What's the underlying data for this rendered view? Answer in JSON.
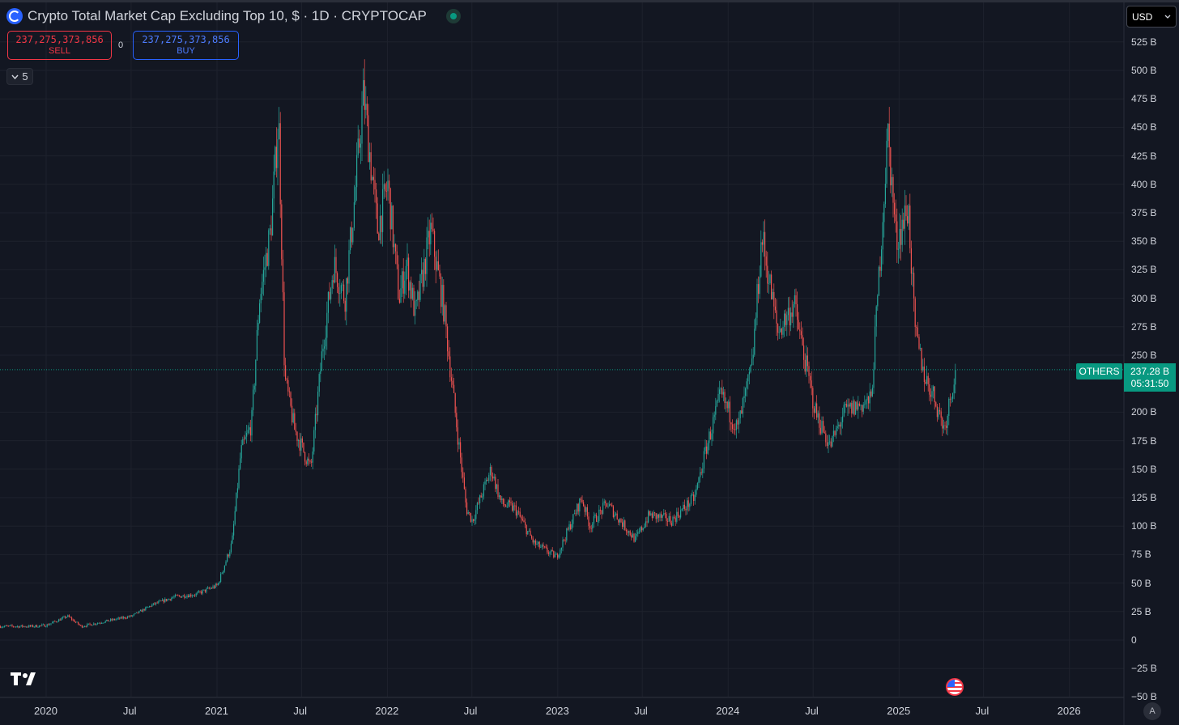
{
  "header": {
    "title": "Crypto Total Market Cap Excluding Top 10, $ · 1D · CRYPTOCAP",
    "currency": "USD",
    "collapse_count": "5"
  },
  "trade": {
    "sell_price": "237,275,373,856",
    "sell_label": "SELL",
    "spread": "0",
    "buy_price": "237,275,373,856",
    "buy_label": "BUY"
  },
  "price_tag": {
    "symbol": "OTHERS",
    "price": "237.28 B",
    "countdown": "05:31:50"
  },
  "colors": {
    "background": "#131722",
    "up": "#26a69a",
    "down": "#ef5350",
    "accent_blue": "#2962ff"
  },
  "chart_data": {
    "type": "candlestick",
    "title": "Crypto Total Market Cap Excluding Top 10, $ · 1D · CRYPTOCAP",
    "y_unit": "B",
    "ylim": [
      -50,
      540
    ],
    "y_ticks": [
      "525 B",
      "500 B",
      "475 B",
      "450 B",
      "425 B",
      "400 B",
      "375 B",
      "350 B",
      "325 B",
      "300 B",
      "275 B",
      "250 B",
      "200 B",
      "175 B",
      "150 B",
      "125 B",
      "100 B",
      "75 B",
      "50 B",
      "25 B",
      "0",
      "−25 B",
      "−50 B"
    ],
    "y_tick_values": [
      525,
      500,
      475,
      450,
      425,
      400,
      375,
      350,
      325,
      300,
      275,
      250,
      200,
      175,
      150,
      125,
      100,
      75,
      50,
      25,
      0,
      -25,
      -50
    ],
    "x_ticks": [
      "2020",
      "Jul",
      "2021",
      "Jul",
      "2022",
      "Jul",
      "2023",
      "Jul",
      "2024",
      "Jul",
      "2025",
      "Jul",
      "2026"
    ],
    "x_tick_dates": [
      "2020-01-01",
      "2020-07-01",
      "2021-01-01",
      "2021-07-01",
      "2022-01-01",
      "2022-07-01",
      "2023-01-01",
      "2023-07-01",
      "2024-01-01",
      "2024-07-01",
      "2025-01-01",
      "2025-07-01",
      "2026-01-01"
    ],
    "last_value": 237.28,
    "series": [
      {
        "values": [
          [
            "2019-12-01",
            12
          ],
          [
            "2020-01-01",
            13
          ],
          [
            "2020-02-15",
            21
          ],
          [
            "2020-03-15",
            12
          ],
          [
            "2020-05-01",
            16
          ],
          [
            "2020-07-01",
            21
          ],
          [
            "2020-08-15",
            31
          ],
          [
            "2020-10-01",
            38
          ],
          [
            "2020-11-15",
            40
          ],
          [
            "2021-01-01",
            48
          ],
          [
            "2021-02-01",
            85
          ],
          [
            "2021-02-20",
            165
          ],
          [
            "2021-03-15",
            190
          ],
          [
            "2021-04-01",
            300
          ],
          [
            "2021-04-25",
            360
          ],
          [
            "2021-05-12",
            460
          ],
          [
            "2021-05-25",
            230
          ],
          [
            "2021-06-15",
            185
          ],
          [
            "2021-07-20",
            150
          ],
          [
            "2021-08-15",
            260
          ],
          [
            "2021-09-07",
            330
          ],
          [
            "2021-10-01",
            300
          ],
          [
            "2021-10-20",
            380
          ],
          [
            "2021-11-10",
            480
          ],
          [
            "2021-11-25",
            420
          ],
          [
            "2021-12-10",
            360
          ],
          [
            "2022-01-01",
            400
          ],
          [
            "2022-01-25",
            300
          ],
          [
            "2022-02-10",
            330
          ],
          [
            "2022-03-01",
            285
          ],
          [
            "2022-04-03",
            360
          ],
          [
            "2022-05-01",
            290
          ],
          [
            "2022-05-25",
            200
          ],
          [
            "2022-06-18",
            115
          ],
          [
            "2022-07-01",
            105
          ],
          [
            "2022-08-10",
            150
          ],
          [
            "2022-09-01",
            120
          ],
          [
            "2022-10-01",
            115
          ],
          [
            "2022-11-10",
            85
          ],
          [
            "2022-12-28",
            73
          ],
          [
            "2023-01-31",
            105
          ],
          [
            "2023-02-20",
            125
          ],
          [
            "2023-03-10",
            100
          ],
          [
            "2023-04-15",
            120
          ],
          [
            "2023-06-15",
            88
          ],
          [
            "2023-07-15",
            110
          ],
          [
            "2023-09-01",
            105
          ],
          [
            "2023-10-20",
            125
          ],
          [
            "2023-11-15",
            170
          ],
          [
            "2023-12-15",
            215
          ],
          [
            "2024-01-20",
            185
          ],
          [
            "2024-02-20",
            240
          ],
          [
            "2024-03-12",
            355
          ],
          [
            "2024-04-15",
            270
          ],
          [
            "2024-05-20",
            295
          ],
          [
            "2024-06-10",
            250
          ],
          [
            "2024-07-05",
            200
          ],
          [
            "2024-08-05",
            170
          ],
          [
            "2024-09-05",
            200
          ],
          [
            "2024-10-01",
            205
          ],
          [
            "2024-11-01",
            210
          ],
          [
            "2024-11-15",
            300
          ],
          [
            "2024-12-07",
            445
          ],
          [
            "2024-12-25",
            350
          ],
          [
            "2025-01-20",
            380
          ],
          [
            "2025-02-03",
            270
          ],
          [
            "2025-02-25",
            230
          ],
          [
            "2025-03-15",
            215
          ],
          [
            "2025-04-07",
            185
          ],
          [
            "2025-04-20",
            215
          ],
          [
            "2025-05-01",
            237.28
          ]
        ]
      }
    ]
  }
}
